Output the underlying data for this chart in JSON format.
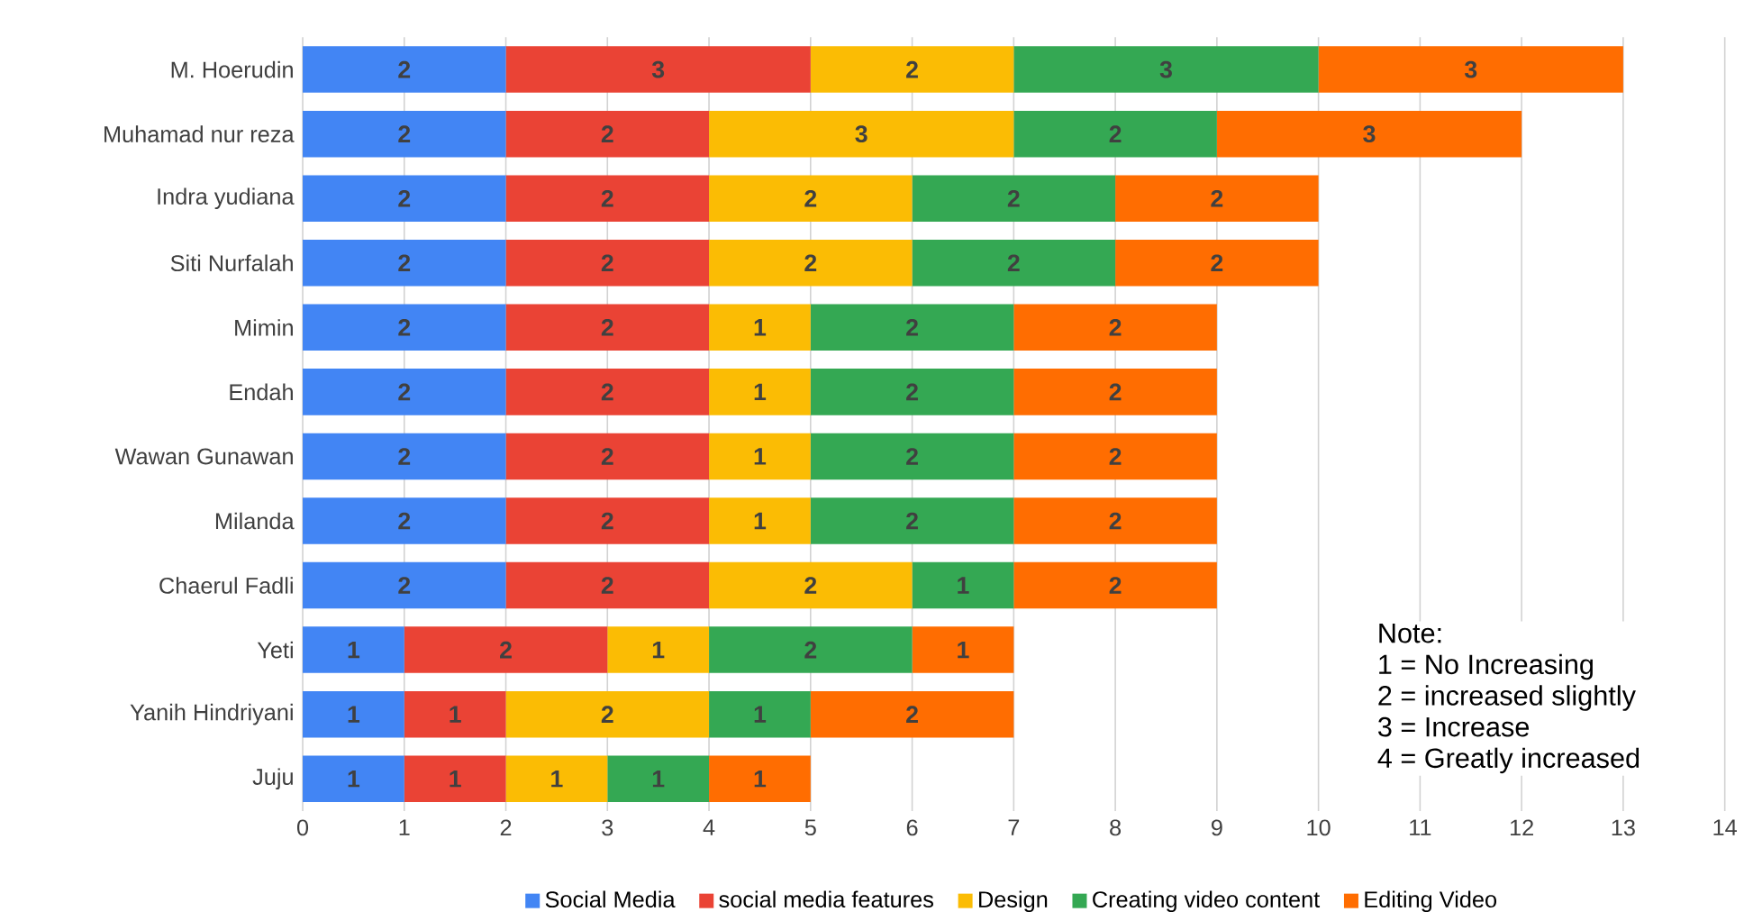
{
  "chart_data": {
    "type": "bar",
    "orientation": "horizontal",
    "stacked": true,
    "data_labels": true,
    "grid": "x",
    "legend": "bottom",
    "categories": [
      "M. Hoerudin",
      "Muhamad nur reza",
      "Indra yudiana",
      "Siti Nurfalah",
      "Mimin",
      "Endah",
      "Wawan Gunawan",
      "Milanda",
      "Chaerul Fadli",
      "Yeti",
      "Yanih Hindriyani",
      "Juju"
    ],
    "series": [
      {
        "name": "Social Media",
        "color": "#4285f4",
        "values": [
          2,
          2,
          2,
          2,
          2,
          2,
          2,
          2,
          2,
          1,
          1,
          1
        ]
      },
      {
        "name": "social media features",
        "color": "#ea4335",
        "values": [
          3,
          2,
          2,
          2,
          2,
          2,
          2,
          2,
          2,
          2,
          1,
          1
        ]
      },
      {
        "name": "Design",
        "color": "#fbbc04",
        "values": [
          2,
          3,
          2,
          2,
          1,
          1,
          1,
          1,
          2,
          1,
          2,
          1
        ]
      },
      {
        "name": "Creating video content",
        "color": "#34a853",
        "values": [
          3,
          2,
          2,
          2,
          2,
          2,
          2,
          2,
          1,
          2,
          1,
          1
        ]
      },
      {
        "name": "Editing Video",
        "color": "#ff6d01",
        "values": [
          3,
          3,
          2,
          2,
          2,
          2,
          2,
          2,
          2,
          1,
          2,
          1
        ]
      }
    ],
    "xlim": [
      0,
      14
    ],
    "xticks": [
      0,
      1,
      2,
      3,
      4,
      5,
      6,
      7,
      8,
      9,
      10,
      11,
      12,
      13,
      14
    ],
    "annotations": [
      "Note:",
      "1 = No Increasing",
      "2 = increased slightly",
      "3 = Increase",
      "4 = Greatly increased"
    ]
  }
}
